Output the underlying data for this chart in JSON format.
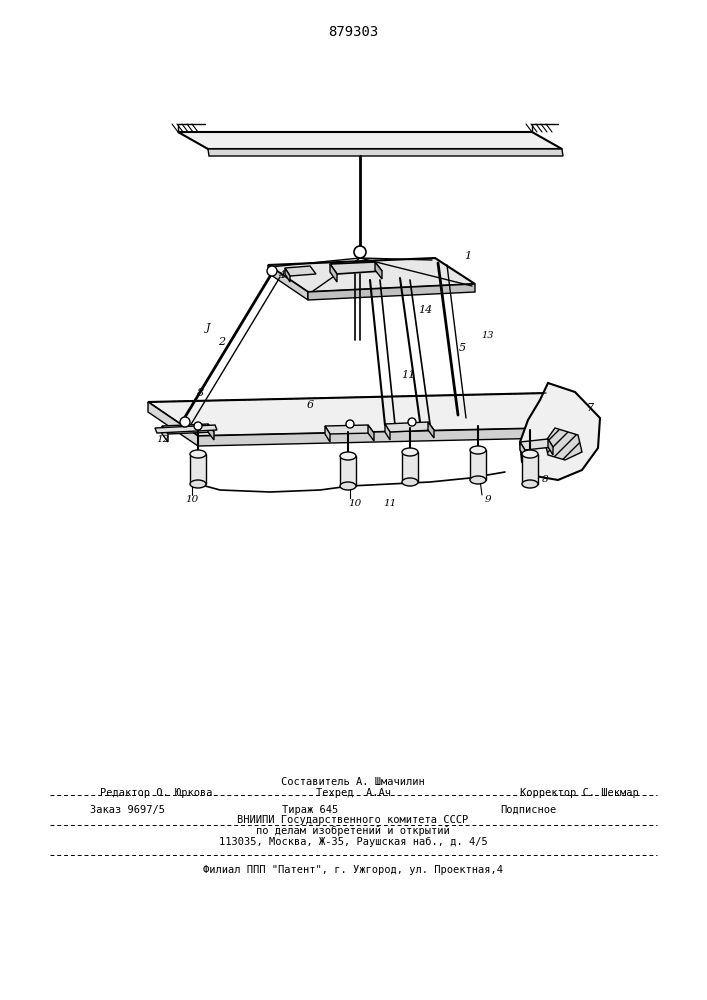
{
  "patent_number": "879303",
  "background_color": "#ffffff",
  "line_color": "#000000",
  "fig_width": 7.07,
  "fig_height": 10.0,
  "dpi": 100,
  "footer": {
    "line1_left": "Редактор О. Юркова",
    "line1_center_top": "Составитель А. Шмачилин",
    "line1_center_bottom": "Техред  А.Ач",
    "line1_right": "Корректор С. Шекмар",
    "line2_left": "Заказ 9697/5",
    "line2_center": "Тираж 645",
    "line2_right": "Подписное",
    "line3": "ВНИИПИ Государственного комитета СССР",
    "line4": "по делам изобретений и открытий",
    "line5": "113035, Москва, Ж-35, Раушская наб., д. 4/5",
    "line6": "Филиал ППП \"Патент\", г. Ужгород, ул. Проектная,4"
  }
}
